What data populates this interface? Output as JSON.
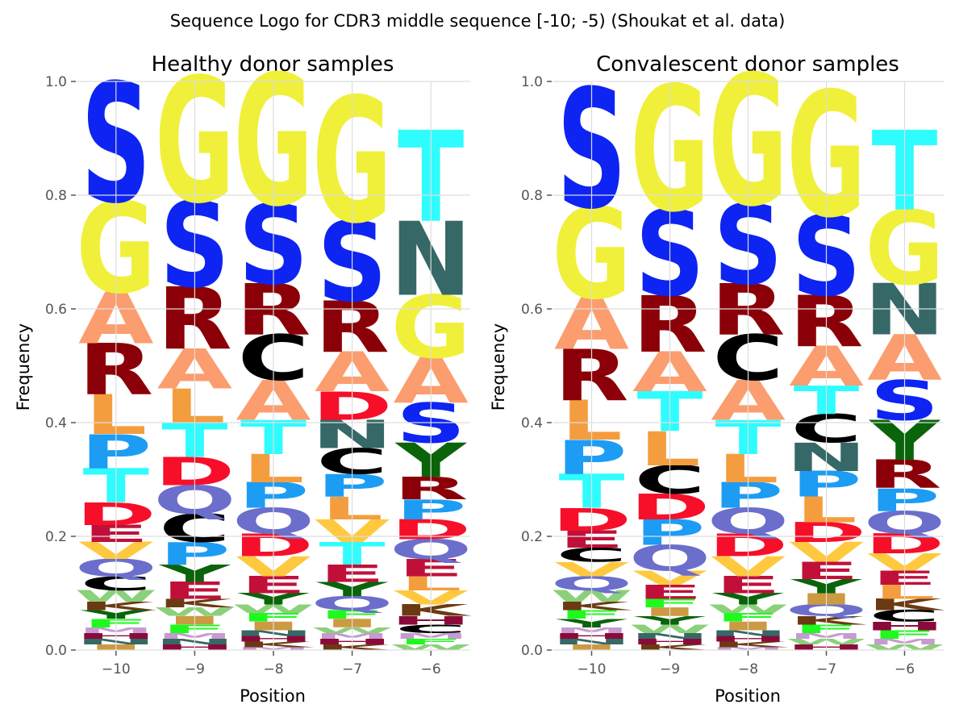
{
  "figure": {
    "suptitle": "Sequence Logo for CDR3 middle sequence [-10; -5) (Shoukat et al. data)"
  },
  "colors": {
    "S": "#0d24f2",
    "G": "#f0f03a",
    "T": "#2ffcff",
    "N": "#356866",
    "R": "#8b0008",
    "A": "#fb9d6e",
    "L": "#f49d3f",
    "P": "#1d9cf4",
    "D": "#f70f2a",
    "Q": "#6b6ecb",
    "V": "#ffc93f",
    "E": "#c0103a",
    "C": "#000000",
    "W": "#8bd07a",
    "Y": "#0a640a",
    "F": "#1ef91e",
    "K": "#6b3a12",
    "H": "#8b0a3a",
    "I": "#cc9a42",
    "M": "#c79ad1",
    "default": "#888888"
  },
  "chart_data": [
    {
      "type": "logo",
      "title": "Healthy donor samples",
      "xlabel": "Position",
      "ylabel": "Frequency",
      "ylim": [
        0,
        1.0
      ],
      "yticks": [
        "0.0",
        "0.2",
        "0.4",
        "0.6",
        "0.8",
        "1.0"
      ],
      "positions": [
        "−10",
        "−9",
        "−8",
        "−7",
        "−6"
      ],
      "columns": [
        [
          [
            "S",
            0.21
          ],
          [
            "G",
            0.16
          ],
          [
            "R",
            0.09
          ],
          [
            "A",
            0.09
          ],
          [
            "L",
            0.07
          ],
          [
            "T",
            0.06
          ],
          [
            "P",
            0.06
          ],
          [
            "D",
            0.04
          ],
          [
            "Q",
            0.03
          ],
          [
            "V",
            0.03
          ],
          [
            "E",
            0.03
          ],
          [
            "C",
            0.025
          ],
          [
            "W",
            0.02
          ],
          [
            "F",
            0.015
          ],
          [
            "Y",
            0.015
          ],
          [
            "K",
            0.015
          ],
          [
            "I",
            0.01
          ],
          [
            "N",
            0.01
          ],
          [
            "H",
            0.01
          ],
          [
            "M",
            0.01
          ]
        ],
        [
          [
            "G",
            0.22
          ],
          [
            "S",
            0.15
          ],
          [
            "R",
            0.11
          ],
          [
            "A",
            0.07
          ],
          [
            "T",
            0.06
          ],
          [
            "L",
            0.06
          ],
          [
            "C",
            0.05
          ],
          [
            "Q",
            0.05
          ],
          [
            "P",
            0.04
          ],
          [
            "D",
            0.05
          ],
          [
            "E",
            0.03
          ],
          [
            "Y",
            0.03
          ],
          [
            "F",
            0.015
          ],
          [
            "I",
            0.015
          ],
          [
            "W",
            0.015
          ],
          [
            "K",
            0.015
          ],
          [
            "H",
            0.01
          ],
          [
            "N",
            0.01
          ],
          [
            "M",
            0.01
          ]
        ],
        [
          [
            "G",
            0.23
          ],
          [
            "S",
            0.14
          ],
          [
            "R",
            0.09
          ],
          [
            "C",
            0.08
          ],
          [
            "A",
            0.07
          ],
          [
            "T",
            0.06
          ],
          [
            "L",
            0.05
          ],
          [
            "Q",
            0.045
          ],
          [
            "P",
            0.045
          ],
          [
            "D",
            0.04
          ],
          [
            "V",
            0.035
          ],
          [
            "E",
            0.03
          ],
          [
            "Y",
            0.02
          ],
          [
            "I",
            0.015
          ],
          [
            "F",
            0.015
          ],
          [
            "W",
            0.015
          ],
          [
            "K",
            0.01
          ],
          [
            "H",
            0.01
          ],
          [
            "N",
            0.01
          ],
          [
            "M",
            0.005
          ]
        ],
        [
          [
            "G",
            0.22
          ],
          [
            "S",
            0.14
          ],
          [
            "R",
            0.09
          ],
          [
            "A",
            0.07
          ],
          [
            "T",
            0.04
          ],
          [
            "V",
            0.04
          ],
          [
            "N",
            0.05
          ],
          [
            "D",
            0.05
          ],
          [
            "L",
            0.04
          ],
          [
            "C",
            0.045
          ],
          [
            "P",
            0.04
          ],
          [
            "E",
            0.03
          ],
          [
            "Q",
            0.025
          ],
          [
            "Y",
            0.025
          ],
          [
            "I",
            0.015
          ],
          [
            "F",
            0.015
          ],
          [
            "K",
            0.01
          ],
          [
            "H",
            0.01
          ],
          [
            "M",
            0.01
          ],
          [
            "W",
            0.01
          ]
        ],
        [
          [
            "T",
            0.16
          ],
          [
            "N",
            0.13
          ],
          [
            "G",
            0.11
          ],
          [
            "A",
            0.08
          ],
          [
            "S",
            0.07
          ],
          [
            "Y",
            0.06
          ],
          [
            "R",
            0.04
          ],
          [
            "Q",
            0.035
          ],
          [
            "D",
            0.035
          ],
          [
            "P",
            0.035
          ],
          [
            "V",
            0.025
          ],
          [
            "L",
            0.025
          ],
          [
            "E",
            0.03
          ],
          [
            "K",
            0.02
          ],
          [
            "C",
            0.015
          ],
          [
            "H",
            0.015
          ],
          [
            "W",
            0.01
          ],
          [
            "F",
            0.01
          ],
          [
            "M",
            0.01
          ]
        ]
      ]
    },
    {
      "type": "logo",
      "title": "Convalescent donor samples",
      "xlabel": "Position",
      "ylabel": "Frequency",
      "ylim": [
        0,
        1.0
      ],
      "yticks": [
        "0.0",
        "0.2",
        "0.4",
        "0.6",
        "0.8",
        "1.0"
      ],
      "positions": [
        "−10",
        "−9",
        "−8",
        "−7",
        "−6"
      ],
      "columns": [
        [
          [
            "S",
            0.21
          ],
          [
            "G",
            0.16
          ],
          [
            "R",
            0.09
          ],
          [
            "A",
            0.09
          ],
          [
            "L",
            0.07
          ],
          [
            "T",
            0.06
          ],
          [
            "P",
            0.06
          ],
          [
            "D",
            0.04
          ],
          [
            "E",
            0.03
          ],
          [
            "Q",
            0.025
          ],
          [
            "V",
            0.025
          ],
          [
            "C",
            0.025
          ],
          [
            "W",
            0.02
          ],
          [
            "Y",
            0.015
          ],
          [
            "F",
            0.015
          ],
          [
            "K",
            0.015
          ],
          [
            "I",
            0.01
          ],
          [
            "N",
            0.01
          ],
          [
            "H",
            0.01
          ],
          [
            "M",
            0.01
          ]
        ],
        [
          [
            "G",
            0.22
          ],
          [
            "S",
            0.15
          ],
          [
            "R",
            0.1
          ],
          [
            "T",
            0.07
          ],
          [
            "A",
            0.07
          ],
          [
            "L",
            0.06
          ],
          [
            "C",
            0.05
          ],
          [
            "Q",
            0.045
          ],
          [
            "P",
            0.045
          ],
          [
            "D",
            0.045
          ],
          [
            "E",
            0.025
          ],
          [
            "V",
            0.025
          ],
          [
            "W",
            0.015
          ],
          [
            "Y",
            0.015
          ],
          [
            "I",
            0.015
          ],
          [
            "F",
            0.015
          ],
          [
            "K",
            0.01
          ],
          [
            "H",
            0.01
          ],
          [
            "N",
            0.01
          ]
        ],
        [
          [
            "G",
            0.23
          ],
          [
            "S",
            0.14
          ],
          [
            "R",
            0.09
          ],
          [
            "C",
            0.08
          ],
          [
            "A",
            0.07
          ],
          [
            "T",
            0.06
          ],
          [
            "L",
            0.05
          ],
          [
            "Q",
            0.045
          ],
          [
            "P",
            0.045
          ],
          [
            "D",
            0.04
          ],
          [
            "V",
            0.035
          ],
          [
            "E",
            0.03
          ],
          [
            "Y",
            0.02
          ],
          [
            "I",
            0.015
          ],
          [
            "F",
            0.015
          ],
          [
            "W",
            0.015
          ],
          [
            "K",
            0.01
          ],
          [
            "H",
            0.01
          ],
          [
            "N",
            0.01
          ],
          [
            "M",
            0.005
          ]
        ],
        [
          [
            "G",
            0.22
          ],
          [
            "S",
            0.14
          ],
          [
            "R",
            0.09
          ],
          [
            "A",
            0.07
          ],
          [
            "N",
            0.05
          ],
          [
            "C",
            0.05
          ],
          [
            "T",
            0.05
          ],
          [
            "L",
            0.045
          ],
          [
            "P",
            0.045
          ],
          [
            "V",
            0.035
          ],
          [
            "D",
            0.035
          ],
          [
            "E",
            0.03
          ],
          [
            "Y",
            0.025
          ],
          [
            "Q",
            0.02
          ],
          [
            "I",
            0.02
          ],
          [
            "F",
            0.015
          ],
          [
            "K",
            0.015
          ],
          [
            "H",
            0.01
          ],
          [
            "W",
            0.01
          ],
          [
            "M",
            0.01
          ]
        ],
        [
          [
            "T",
            0.14
          ],
          [
            "G",
            0.13
          ],
          [
            "N",
            0.09
          ],
          [
            "A",
            0.08
          ],
          [
            "Y",
            0.07
          ],
          [
            "S",
            0.07
          ],
          [
            "R",
            0.05
          ],
          [
            "Q",
            0.04
          ],
          [
            "P",
            0.04
          ],
          [
            "D",
            0.035
          ],
          [
            "V",
            0.03
          ],
          [
            "L",
            0.025
          ],
          [
            "E",
            0.025
          ],
          [
            "C",
            0.02
          ],
          [
            "K",
            0.02
          ],
          [
            "F",
            0.015
          ],
          [
            "H",
            0.015
          ],
          [
            "W",
            0.01
          ],
          [
            "M",
            0.01
          ]
        ]
      ]
    }
  ]
}
